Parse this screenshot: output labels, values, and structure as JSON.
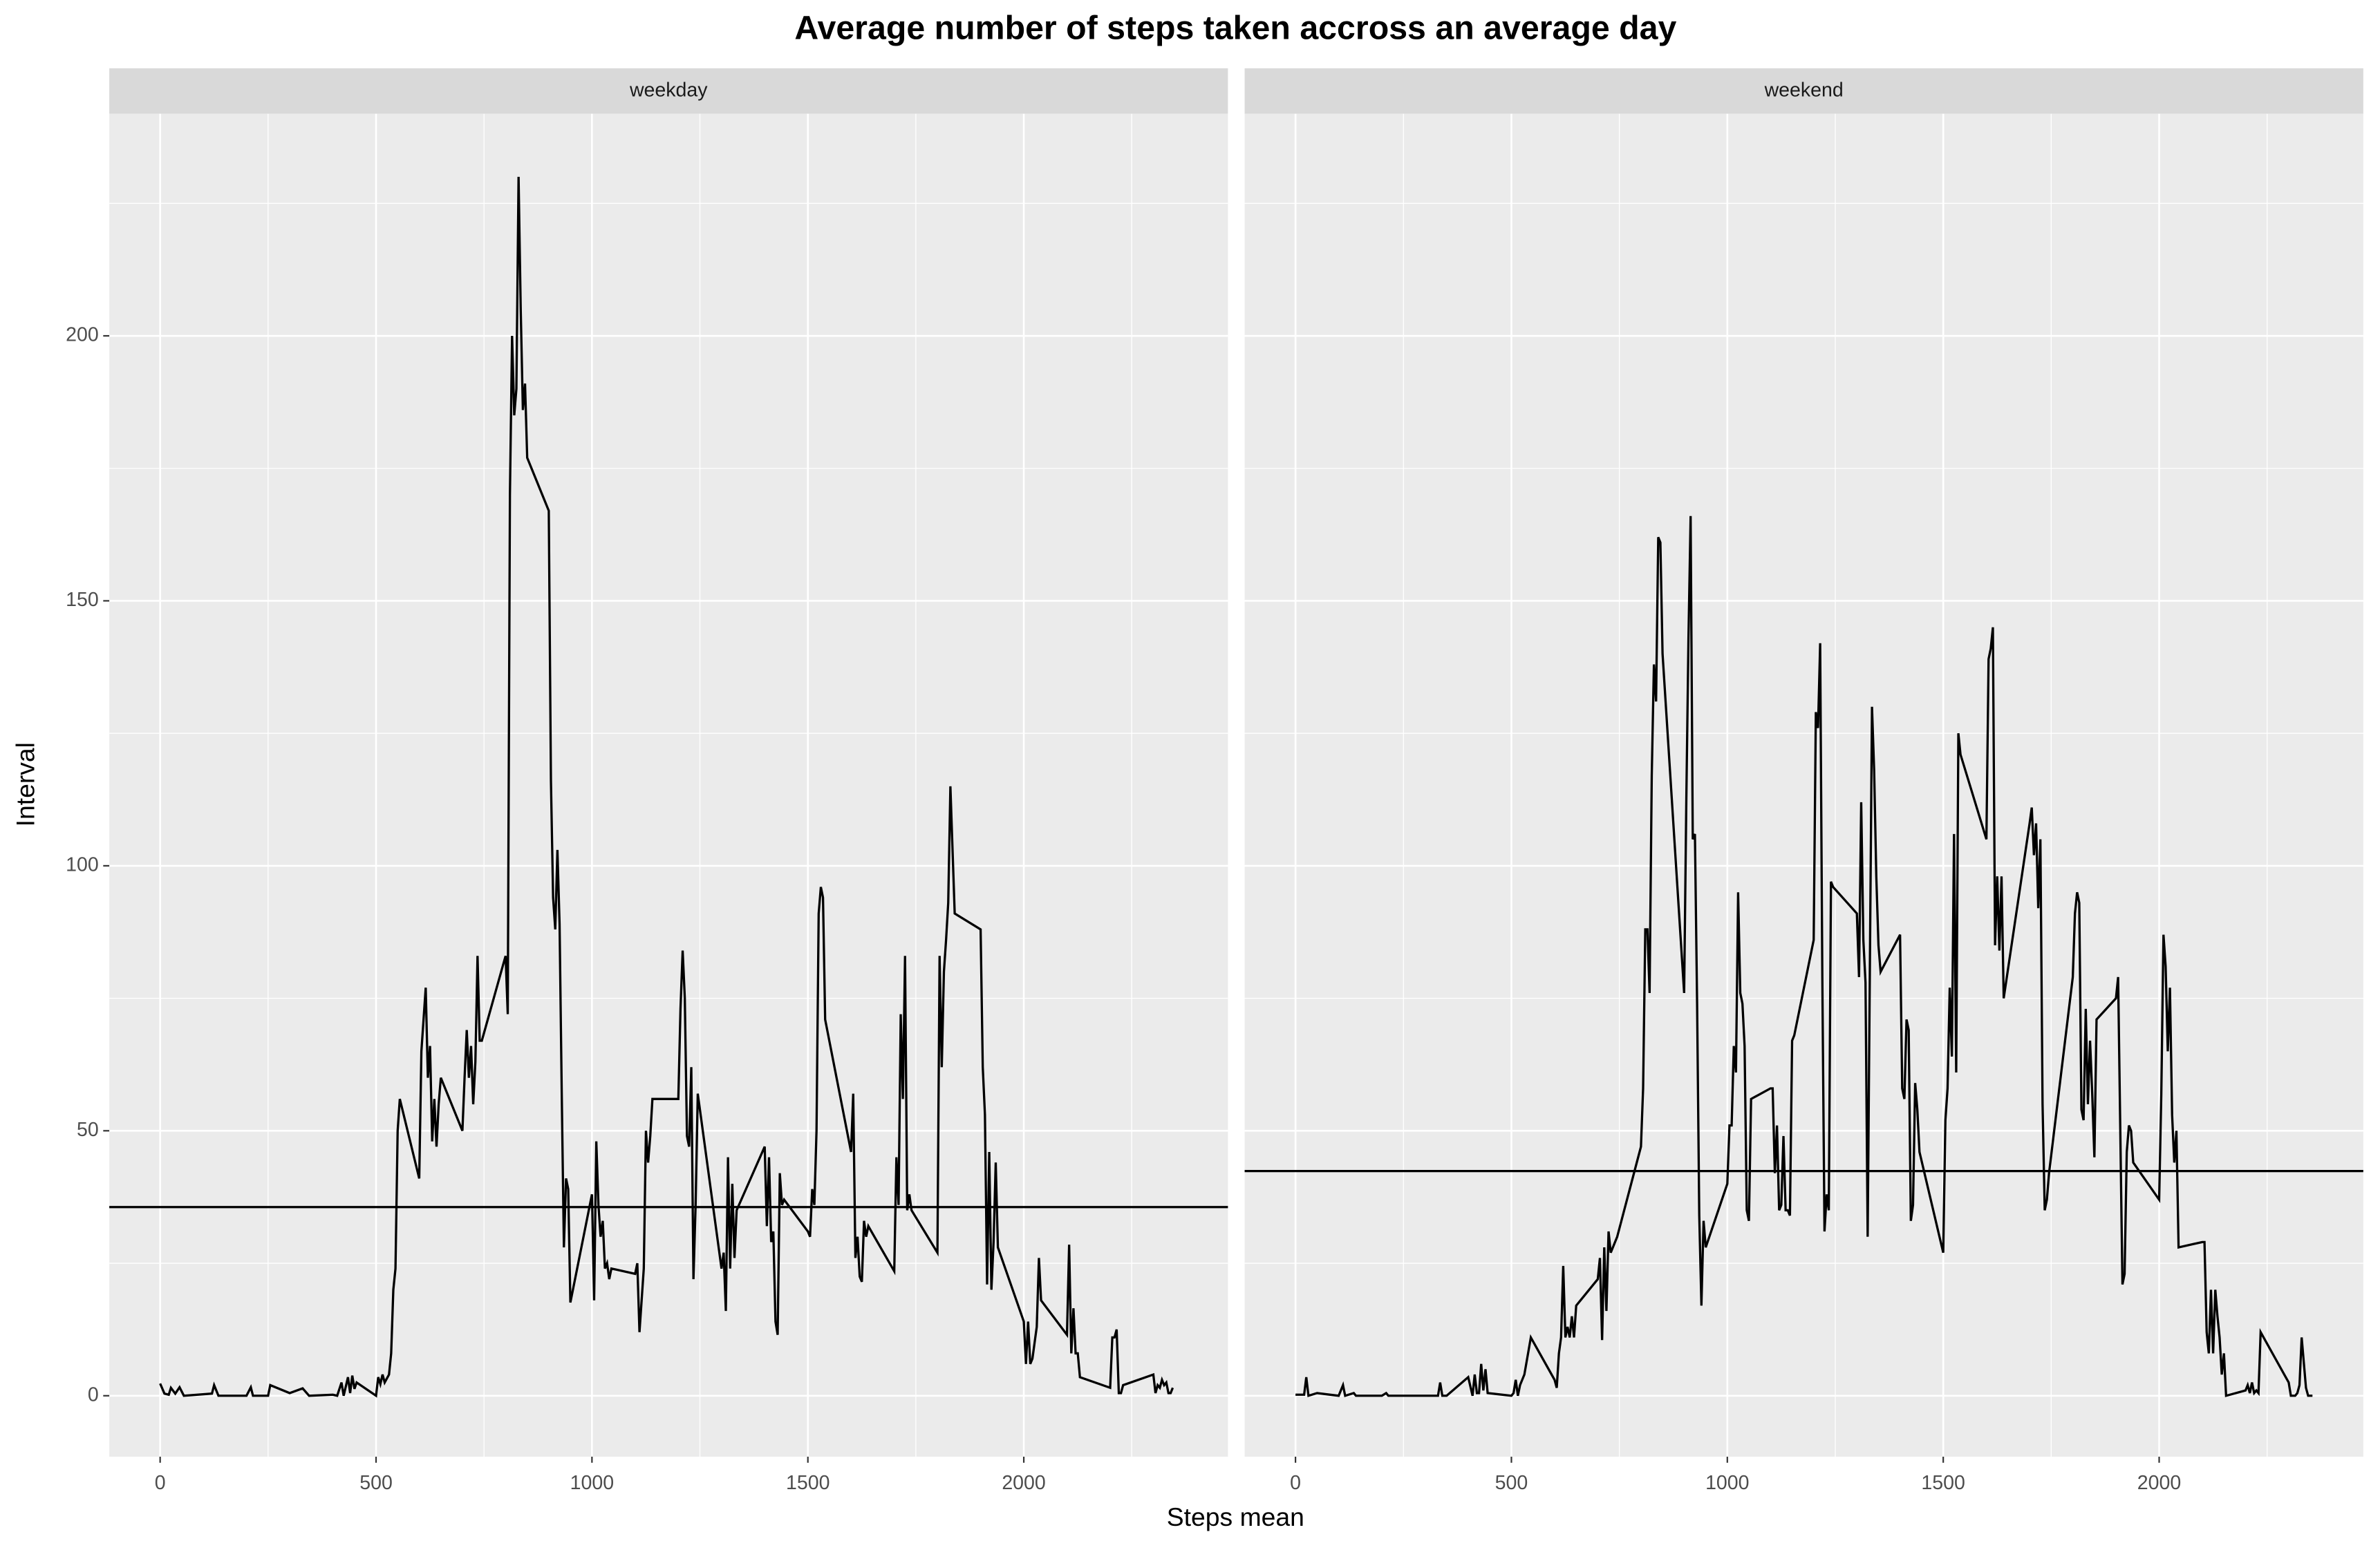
{
  "chart_data": {
    "type": "line",
    "title": "Average number of steps taken accross an average day",
    "x_label": "Steps mean",
    "y_label": "Interval",
    "xlim": [
      -117.75,
      2472.75
    ],
    "ylim": [
      -11.5,
      241.9
    ],
    "xticks": [
      0,
      500,
      1000,
      1500,
      2000
    ],
    "yticks": [
      0,
      50,
      100,
      150,
      200
    ],
    "grid": true,
    "color": "#000000",
    "facets": [
      {
        "label": "weekday",
        "hline": 35.6,
        "x": [
          0,
          10,
          20,
          25,
          35,
          45,
          55,
          120,
          125,
          135,
          200,
          210,
          215,
          250,
          255,
          300,
          330,
          345,
          400,
          410,
          420,
          425,
          435,
          440,
          445,
          450,
          455,
          500,
          505,
          510,
          515,
          520,
          530,
          535,
          540,
          545,
          550,
          555,
          600,
          605,
          615,
          620,
          625,
          630,
          635,
          640,
          645,
          650,
          700,
          705,
          710,
          715,
          720,
          725,
          730,
          735,
          740,
          745,
          800,
          805,
          810,
          815,
          820,
          825,
          830,
          835,
          840,
          845,
          850,
          900,
          905,
          910,
          915,
          920,
          925,
          930,
          935,
          940,
          945,
          950,
          1000,
          1005,
          1010,
          1015,
          1020,
          1025,
          1030,
          1035,
          1040,
          1045,
          1100,
          1105,
          1110,
          1115,
          1120,
          1125,
          1130,
          1135,
          1140,
          1200,
          1205,
          1210,
          1215,
          1220,
          1225,
          1230,
          1235,
          1240,
          1245,
          1300,
          1305,
          1310,
          1315,
          1320,
          1325,
          1330,
          1335,
          1400,
          1405,
          1410,
          1415,
          1420,
          1425,
          1430,
          1435,
          1440,
          1445,
          1500,
          1505,
          1510,
          1515,
          1520,
          1525,
          1530,
          1535,
          1540,
          1600,
          1605,
          1610,
          1615,
          1620,
          1625,
          1630,
          1635,
          1640,
          1700,
          1705,
          1710,
          1715,
          1720,
          1725,
          1730,
          1735,
          1740,
          1800,
          1805,
          1810,
          1815,
          1820,
          1825,
          1830,
          1835,
          1840,
          1900,
          1905,
          1910,
          1915,
          1920,
          1925,
          1930,
          1935,
          1940,
          2000,
          2005,
          2010,
          2015,
          2020,
          2025,
          2030,
          2035,
          2040,
          2100,
          2105,
          2110,
          2115,
          2120,
          2125,
          2130,
          2200,
          2205,
          2210,
          2215,
          2220,
          2225,
          2230,
          2300,
          2305,
          2310,
          2315,
          2320,
          2325,
          2330,
          2335,
          2340,
          2345
        ],
        "values": [
          2.3,
          0.4,
          0.2,
          1.5,
          0.4,
          1.6,
          0,
          0.4,
          2,
          0,
          0,
          1.6,
          0,
          0,
          2,
          0.5,
          1.4,
          0,
          0.2,
          0,
          2.5,
          0,
          3.5,
          0.5,
          3.8,
          1.3,
          2.5,
          0,
          3.5,
          2.2,
          4,
          2.5,
          4,
          8,
          20,
          24,
          50,
          56,
          41,
          65,
          77,
          60,
          66,
          48,
          56,
          47,
          55,
          60,
          50,
          60,
          69,
          60,
          66,
          55,
          63,
          83,
          67,
          67,
          83,
          72,
          170,
          200,
          185,
          190,
          230,
          205,
          186,
          191,
          177,
          167,
          116,
          94,
          88,
          103,
          89,
          57,
          28,
          41,
          39,
          17.6,
          38,
          18,
          48,
          36,
          30,
          33,
          24,
          25,
          22,
          24,
          23,
          25,
          12,
          18,
          24,
          50,
          44,
          49,
          56,
          56,
          73,
          84,
          75,
          49,
          47,
          62,
          22,
          36,
          57,
          24,
          27,
          16,
          45,
          24,
          40,
          26,
          35,
          47,
          32,
          45,
          29,
          31,
          14,
          11.5,
          42,
          36,
          37,
          31,
          30,
          39,
          36,
          50,
          91,
          96,
          94,
          71,
          46,
          57,
          26,
          30,
          22.5,
          21.5,
          33,
          30,
          32,
          23.5,
          45,
          36,
          72,
          56,
          83,
          35,
          38,
          35,
          27,
          83,
          62,
          80,
          86,
          93,
          115,
          103,
          91,
          88,
          62,
          53,
          21,
          46,
          20,
          29,
          44,
          28,
          14,
          6,
          14,
          6,
          7,
          10,
          13,
          26,
          18,
          11.5,
          28.5,
          8,
          16.5,
          8,
          8,
          3.5,
          1.5,
          11,
          11,
          12.5,
          0.5,
          0.5,
          2,
          4,
          0.5,
          2,
          1.5,
          3,
          2,
          2.5,
          0.5,
          0.5,
          1.5
        ]
      },
      {
        "label": "weekend",
        "hline": 42.4,
        "x": [
          0,
          20,
          25,
          30,
          50,
          100,
          110,
          115,
          135,
          140,
          200,
          210,
          215,
          300,
          330,
          335,
          340,
          345,
          350,
          400,
          410,
          415,
          420,
          425,
          430,
          435,
          440,
          445,
          500,
          505,
          510,
          515,
          520,
          530,
          545,
          600,
          605,
          610,
          615,
          620,
          625,
          630,
          635,
          640,
          645,
          650,
          700,
          705,
          710,
          715,
          720,
          725,
          730,
          740,
          745,
          800,
          805,
          810,
          815,
          820,
          825,
          830,
          835,
          840,
          845,
          850,
          900,
          905,
          910,
          915,
          920,
          925,
          930,
          935,
          940,
          945,
          950,
          1000,
          1005,
          1010,
          1015,
          1020,
          1025,
          1030,
          1035,
          1040,
          1045,
          1050,
          1055,
          1100,
          1105,
          1110,
          1115,
          1120,
          1125,
          1130,
          1135,
          1140,
          1145,
          1150,
          1155,
          1200,
          1205,
          1210,
          1215,
          1220,
          1225,
          1230,
          1235,
          1240,
          1245,
          1300,
          1305,
          1310,
          1315,
          1320,
          1325,
          1330,
          1335,
          1340,
          1345,
          1350,
          1355,
          1400,
          1405,
          1410,
          1415,
          1420,
          1425,
          1430,
          1435,
          1440,
          1445,
          1500,
          1505,
          1510,
          1515,
          1520,
          1525,
          1530,
          1535,
          1540,
          1600,
          1605,
          1610,
          1615,
          1620,
          1625,
          1630,
          1635,
          1640,
          1700,
          1705,
          1710,
          1715,
          1720,
          1725,
          1730,
          1735,
          1740,
          1745,
          1800,
          1805,
          1810,
          1815,
          1820,
          1825,
          1830,
          1835,
          1840,
          1845,
          1850,
          1855,
          1900,
          1905,
          1910,
          1915,
          1920,
          1925,
          1930,
          1935,
          1940,
          2000,
          2005,
          2010,
          2015,
          2020,
          2025,
          2030,
          2035,
          2040,
          2045,
          2100,
          2105,
          2110,
          2115,
          2120,
          2125,
          2130,
          2135,
          2140,
          2145,
          2150,
          2155,
          2200,
          2205,
          2210,
          2215,
          2220,
          2225,
          2230,
          2235,
          2300,
          2305,
          2310,
          2315,
          2320,
          2325,
          2330,
          2340,
          2345,
          2355
        ],
        "values": [
          0.2,
          0.2,
          3.5,
          0,
          0.5,
          0,
          2,
          0,
          0.5,
          0,
          0,
          0.5,
          0,
          0,
          0,
          2.5,
          0,
          0,
          0,
          3.5,
          0,
          4,
          0.5,
          0.5,
          6,
          1,
          5,
          0.5,
          0,
          0.5,
          3,
          0,
          2,
          4,
          11,
          3,
          1.5,
          8,
          11,
          24.5,
          11,
          13,
          11,
          15,
          11,
          17,
          22,
          26,
          10.5,
          28,
          16,
          31,
          27,
          29,
          30,
          47,
          58,
          88,
          88,
          76,
          117,
          138,
          131,
          162,
          161,
          140,
          76,
          112,
          143,
          166,
          105,
          106,
          74,
          34,
          17,
          33,
          28,
          40,
          51,
          51,
          66,
          61,
          95,
          76,
          74,
          66,
          35,
          33,
          56,
          58,
          58,
          42,
          51,
          35,
          36,
          49,
          35,
          35,
          34,
          67,
          68,
          86,
          129,
          126,
          142,
          79,
          31,
          38,
          35,
          97,
          96,
          91,
          79,
          112,
          86,
          78,
          30,
          80,
          130,
          118,
          98,
          85,
          80,
          87,
          58,
          56,
          71,
          69,
          33,
          36,
          59,
          54,
          46,
          27,
          52,
          58,
          77,
          64,
          106,
          61,
          125,
          121,
          105,
          139,
          141,
          145,
          85,
          98,
          84,
          98,
          75,
          108,
          111,
          102,
          108,
          92,
          105,
          55,
          35,
          37,
          42,
          79,
          91,
          95,
          93,
          54,
          52,
          73,
          55,
          67,
          57,
          45,
          71,
          75,
          79,
          50,
          21,
          23,
          46,
          51,
          50,
          44,
          37,
          57,
          87,
          81,
          65,
          77,
          53,
          44,
          50,
          28,
          29,
          29,
          12,
          8,
          20,
          8,
          20,
          15,
          11,
          4,
          8,
          0,
          1,
          2,
          0.5,
          2.5,
          0.5,
          1,
          0.5,
          12,
          2.5,
          0,
          0,
          0,
          0.5,
          2,
          11,
          1.5,
          0,
          0
        ]
      }
    ]
  }
}
